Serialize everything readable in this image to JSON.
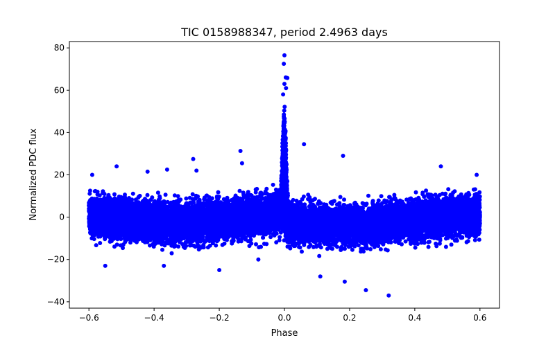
{
  "chart_data": {
    "type": "scatter",
    "title": "TIC 0158988347, period 2.4963 days",
    "xlabel": "Phase",
    "ylabel": "Normalized PDC flux",
    "xlim": [
      -0.66,
      0.66
    ],
    "ylim": [
      -43,
      83
    ],
    "xticks": [
      -0.6,
      -0.4,
      -0.2,
      0.0,
      0.2,
      0.4,
      0.6
    ],
    "xtick_labels": [
      "−0.6",
      "−0.4",
      "−0.2",
      "0.0",
      "0.2",
      "0.4",
      "0.6"
    ],
    "yticks": [
      -40,
      -20,
      0,
      20,
      40,
      60,
      80
    ],
    "ytick_labels": [
      "−40",
      "−20",
      "0",
      "20",
      "40",
      "60",
      "80"
    ],
    "grid": false,
    "color": "#0000ff",
    "phase_range": [
      -0.6,
      0.6
    ],
    "point_count": 14000,
    "noise_sd": 4.3,
    "baseline_trend": {
      "phase": [
        -0.6,
        -0.45,
        -0.3,
        -0.15,
        -0.03,
        -0.005,
        0.005,
        0.03,
        0.15,
        0.25,
        0.4,
        0.5,
        0.6
      ],
      "flux": [
        0.5,
        -1.5,
        -3,
        -1.5,
        2,
        4,
        -3,
        -3,
        -4,
        -4,
        -1.5,
        0,
        1
      ]
    },
    "peak": {
      "center_phase": 0.0,
      "width_phase": 0.006,
      "amplitude": 38,
      "points": 500
    },
    "outliers": [
      [
        -0.59,
        20
      ],
      [
        -0.55,
        -23
      ],
      [
        -0.515,
        24
      ],
      [
        -0.42,
        21.5
      ],
      [
        -0.36,
        22.5
      ],
      [
        -0.37,
        -23
      ],
      [
        -0.28,
        27.5
      ],
      [
        -0.27,
        22
      ],
      [
        -0.2,
        -25
      ],
      [
        -0.135,
        31.3
      ],
      [
        -0.13,
        25.5
      ],
      [
        -0.08,
        -20
      ],
      [
        0.06,
        34.5
      ],
      [
        0.11,
        -28
      ],
      [
        0.18,
        29
      ],
      [
        0.185,
        -30.5
      ],
      [
        0.25,
        -34.5
      ],
      [
        0.32,
        -37
      ],
      [
        0.48,
        24
      ],
      [
        0.59,
        20
      ],
      [
        0.0,
        76.5
      ],
      [
        -0.002,
        72.5
      ],
      [
        0.004,
        66
      ],
      [
        0.009,
        65.8
      ],
      [
        0.0,
        63
      ],
      [
        0.005,
        61
      ],
      [
        -0.004,
        58
      ]
    ]
  }
}
